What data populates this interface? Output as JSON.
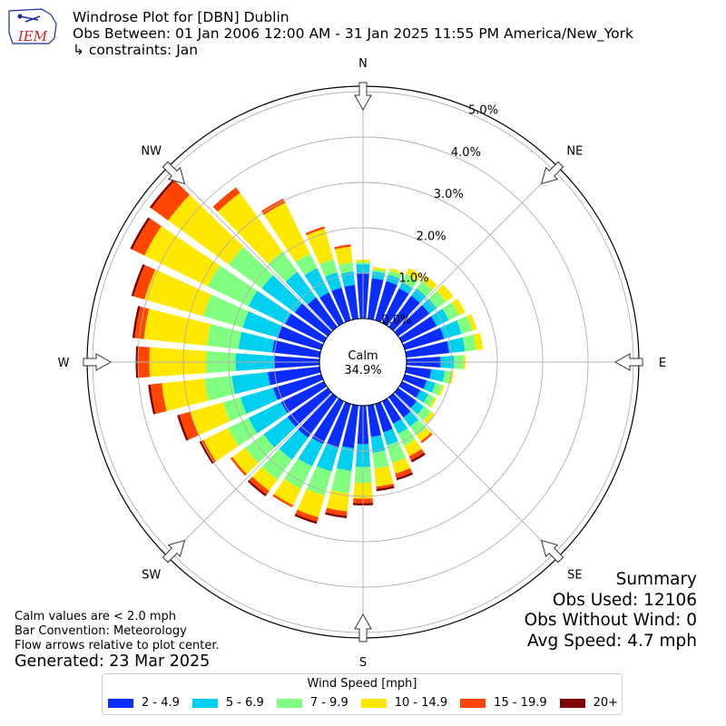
{
  "header": {
    "title": "Windrose Plot for [DBN] Dublin",
    "obs_between": "Obs Between: 01 Jan 2006 12:00 AM - 31 Jan 2025 11:55 PM America/New_York",
    "constraints": "↳ constraints: Jan",
    "logo_text": "IEM"
  },
  "notes": {
    "calm_note": "Calm values are < 2.0 mph",
    "bar_convention": "Bar Convention: Meteorology",
    "flow_arrows": "Flow arrows relative to plot center.",
    "generated": "Generated: 23 Mar 2025"
  },
  "summary": {
    "title": "Summary",
    "obs_used": "Obs Used: 12106",
    "obs_without_wind": "Obs Without Wind: 0",
    "avg_speed": "Avg Speed: 4.7 mph"
  },
  "chart_data": {
    "type": "windrose",
    "title": "Windrose Plot for [DBN] Dublin",
    "calm": {
      "label": "Calm",
      "value": "34.9%"
    },
    "directions": [
      "N",
      "NE",
      "E",
      "SE",
      "S",
      "SW",
      "W",
      "NW"
    ],
    "radial_ticks": [
      "0.0%",
      "1.0%",
      "2.0%",
      "3.0%",
      "4.0%",
      "5.0%"
    ],
    "radial_max": 5.0,
    "legend_title": "Wind Speed [mph]",
    "bins": [
      {
        "label": "2 - 4.9",
        "color": "#0a2cff"
      },
      {
        "label": "5 - 6.9",
        "color": "#00d0f0"
      },
      {
        "label": "7 - 9.9",
        "color": "#80ff80"
      },
      {
        "label": "10 - 14.9",
        "color": "#ffe800"
      },
      {
        "label": "15 - 19.9",
        "color": "#ff4500"
      },
      {
        "label": "20+",
        "color": "#800000"
      }
    ],
    "sector_directions_deg": [
      0,
      10,
      20,
      30,
      40,
      50,
      60,
      70,
      80,
      90,
      100,
      110,
      120,
      130,
      140,
      150,
      160,
      170,
      180,
      190,
      200,
      210,
      220,
      230,
      240,
      250,
      260,
      270,
      280,
      290,
      300,
      310,
      320,
      330,
      340,
      350
    ],
    "cumulative_percent": [
      [
        1.0,
        1.2,
        1.25,
        1.3,
        1.3,
        1.3
      ],
      [
        0.9,
        1.05,
        1.1,
        1.15,
        1.15,
        1.15
      ],
      [
        0.9,
        1.05,
        1.15,
        1.2,
        1.2,
        1.2
      ],
      [
        0.85,
        1.0,
        1.2,
        1.35,
        1.35,
        1.35
      ],
      [
        0.85,
        1.05,
        1.25,
        1.4,
        1.4,
        1.4
      ],
      [
        0.85,
        1.05,
        1.3,
        1.5,
        1.5,
        1.5
      ],
      [
        0.85,
        1.15,
        1.4,
        1.55,
        1.55,
        1.55
      ],
      [
        0.9,
        1.3,
        1.55,
        1.65,
        1.65,
        1.65
      ],
      [
        0.95,
        1.3,
        1.55,
        1.7,
        1.7,
        1.7
      ],
      [
        0.75,
        1.05,
        1.25,
        1.3,
        1.3,
        1.3
      ],
      [
        0.55,
        0.85,
        1.0,
        1.05,
        1.05,
        1.05
      ],
      [
        0.5,
        0.7,
        0.85,
        0.9,
        0.9,
        0.9
      ],
      [
        0.45,
        0.65,
        0.8,
        0.85,
        0.85,
        0.85
      ],
      [
        0.5,
        0.7,
        0.9,
        1.0,
        1.0,
        1.0
      ],
      [
        0.55,
        0.8,
        1.05,
        1.2,
        1.25,
        1.25
      ],
      [
        0.55,
        0.8,
        1.1,
        1.35,
        1.45,
        1.5
      ],
      [
        0.65,
        0.95,
        1.35,
        1.6,
        1.7,
        1.75
      ],
      [
        0.7,
        1.05,
        1.4,
        1.8,
        1.85,
        1.9
      ],
      [
        0.85,
        1.35,
        1.7,
        2.05,
        2.15,
        2.2
      ],
      [
        0.95,
        1.45,
        1.95,
        2.35,
        2.45,
        2.5
      ],
      [
        1.0,
        1.55,
        2.1,
        2.6,
        2.7,
        2.75
      ],
      [
        1.05,
        1.6,
        2.15,
        2.55,
        2.6,
        2.6
      ],
      [
        1.1,
        1.7,
        2.25,
        2.55,
        2.65,
        2.7
      ],
      [
        1.1,
        1.75,
        2.25,
        2.6,
        2.65,
        2.65
      ],
      [
        1.05,
        1.85,
        2.35,
        2.95,
        3.0,
        3.05
      ],
      [
        1.1,
        1.85,
        2.25,
        3.0,
        3.25,
        3.3
      ],
      [
        1.15,
        1.95,
        2.55,
        3.5,
        3.75,
        3.8
      ],
      [
        1.0,
        1.85,
        2.5,
        3.75,
        4.0,
        4.05
      ],
      [
        1.05,
        1.8,
        2.5,
        3.9,
        4.1,
        4.15
      ],
      [
        1.0,
        1.8,
        2.7,
        4.05,
        4.3,
        4.35
      ],
      [
        0.95,
        1.85,
        2.85,
        4.4,
        4.7,
        4.75
      ],
      [
        0.9,
        1.8,
        2.7,
        4.35,
        4.8,
        4.85
      ],
      [
        0.8,
        1.5,
        2.05,
        3.65,
        3.8,
        3.8
      ],
      [
        0.75,
        1.35,
        1.7,
        2.95,
        3.05,
        3.05
      ],
      [
        0.75,
        1.1,
        1.4,
        2.1,
        2.15,
        2.15
      ],
      [
        0.75,
        1.05,
        1.25,
        1.6,
        1.65,
        1.65
      ]
    ]
  }
}
